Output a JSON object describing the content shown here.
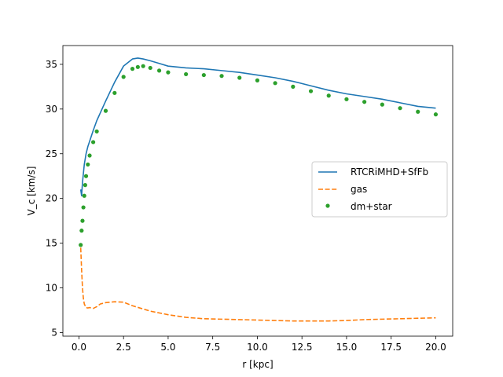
{
  "chart_data": {
    "type": "line",
    "xlabel": "r [kpc]",
    "ylabel": "V_c [km/s]",
    "xlim": [
      -0.9,
      20.95
    ],
    "ylim": [
      4.6,
      37.1
    ],
    "xticks": [
      0.0,
      2.5,
      5.0,
      7.5,
      10.0,
      12.5,
      15.0,
      17.5,
      20.0
    ],
    "xtick_labels": [
      "0.0",
      "2.5",
      "5.0",
      "7.5",
      "10.0",
      "12.5",
      "15.0",
      "17.5",
      "20.0"
    ],
    "yticks": [
      5,
      10,
      15,
      20,
      25,
      30,
      35
    ],
    "ytick_labels": [
      "5",
      "10",
      "15",
      "20",
      "25",
      "30",
      "35"
    ],
    "grid": false,
    "legend_position": "center-right",
    "series": [
      {
        "name": "RTCRiMHD+SfFb",
        "style": "solid",
        "color": "#1f77b4",
        "x": [
          0.1,
          0.15,
          0.2,
          0.3,
          0.4,
          0.5,
          0.6,
          0.8,
          1.0,
          1.5,
          2.0,
          2.5,
          3.0,
          3.3,
          3.6,
          4.0,
          4.5,
          5.0,
          6.0,
          7.0,
          8.0,
          9.0,
          10.0,
          11.0,
          12.0,
          13.0,
          14.0,
          15.0,
          16.0,
          17.0,
          18.0,
          19.0,
          20.0
        ],
        "y": [
          21.0,
          20.3,
          21.8,
          23.8,
          25.0,
          25.8,
          26.4,
          27.6,
          28.7,
          30.9,
          33.0,
          34.8,
          35.6,
          35.7,
          35.6,
          35.4,
          35.1,
          34.8,
          34.6,
          34.5,
          34.3,
          34.1,
          33.8,
          33.5,
          33.1,
          32.6,
          32.1,
          31.7,
          31.4,
          31.1,
          30.7,
          30.3,
          30.1
        ]
      },
      {
        "name": "gas",
        "style": "dashed",
        "color": "#ff7f0e",
        "x": [
          0.1,
          0.15,
          0.2,
          0.25,
          0.3,
          0.4,
          0.5,
          0.6,
          0.8,
          1.0,
          1.2,
          1.5,
          2.0,
          2.5,
          3.0,
          4.0,
          5.0,
          6.0,
          7.0,
          8.0,
          9.0,
          10.0,
          11.0,
          12.0,
          13.0,
          14.0,
          15.0,
          16.0,
          17.0,
          18.0,
          19.0,
          20.0
        ],
        "y": [
          14.5,
          12.0,
          10.0,
          8.8,
          8.2,
          7.8,
          7.75,
          7.8,
          7.7,
          7.9,
          8.2,
          8.35,
          8.45,
          8.4,
          8.0,
          7.4,
          7.0,
          6.7,
          6.55,
          6.5,
          6.45,
          6.4,
          6.35,
          6.3,
          6.3,
          6.3,
          6.35,
          6.45,
          6.5,
          6.55,
          6.6,
          6.65
        ]
      },
      {
        "name": "dm+star",
        "style": "markers",
        "color": "#2ca02c",
        "x": [
          0.1,
          0.15,
          0.2,
          0.25,
          0.3,
          0.35,
          0.4,
          0.5,
          0.6,
          0.8,
          1.0,
          1.5,
          2.0,
          2.5,
          3.0,
          3.3,
          3.6,
          4.0,
          4.5,
          5.0,
          6.0,
          7.0,
          8.0,
          9.0,
          10.0,
          11.0,
          12.0,
          13.0,
          14.0,
          15.0,
          16.0,
          17.0,
          18.0,
          19.0,
          20.0
        ],
        "y": [
          14.8,
          16.4,
          17.5,
          19.0,
          20.3,
          21.5,
          22.5,
          23.8,
          24.8,
          26.3,
          27.5,
          29.8,
          31.8,
          33.6,
          34.5,
          34.7,
          34.8,
          34.6,
          34.3,
          34.1,
          33.9,
          33.8,
          33.7,
          33.5,
          33.2,
          32.9,
          32.5,
          32.0,
          31.5,
          31.1,
          30.8,
          30.5,
          30.1,
          29.7,
          29.4
        ]
      }
    ]
  }
}
